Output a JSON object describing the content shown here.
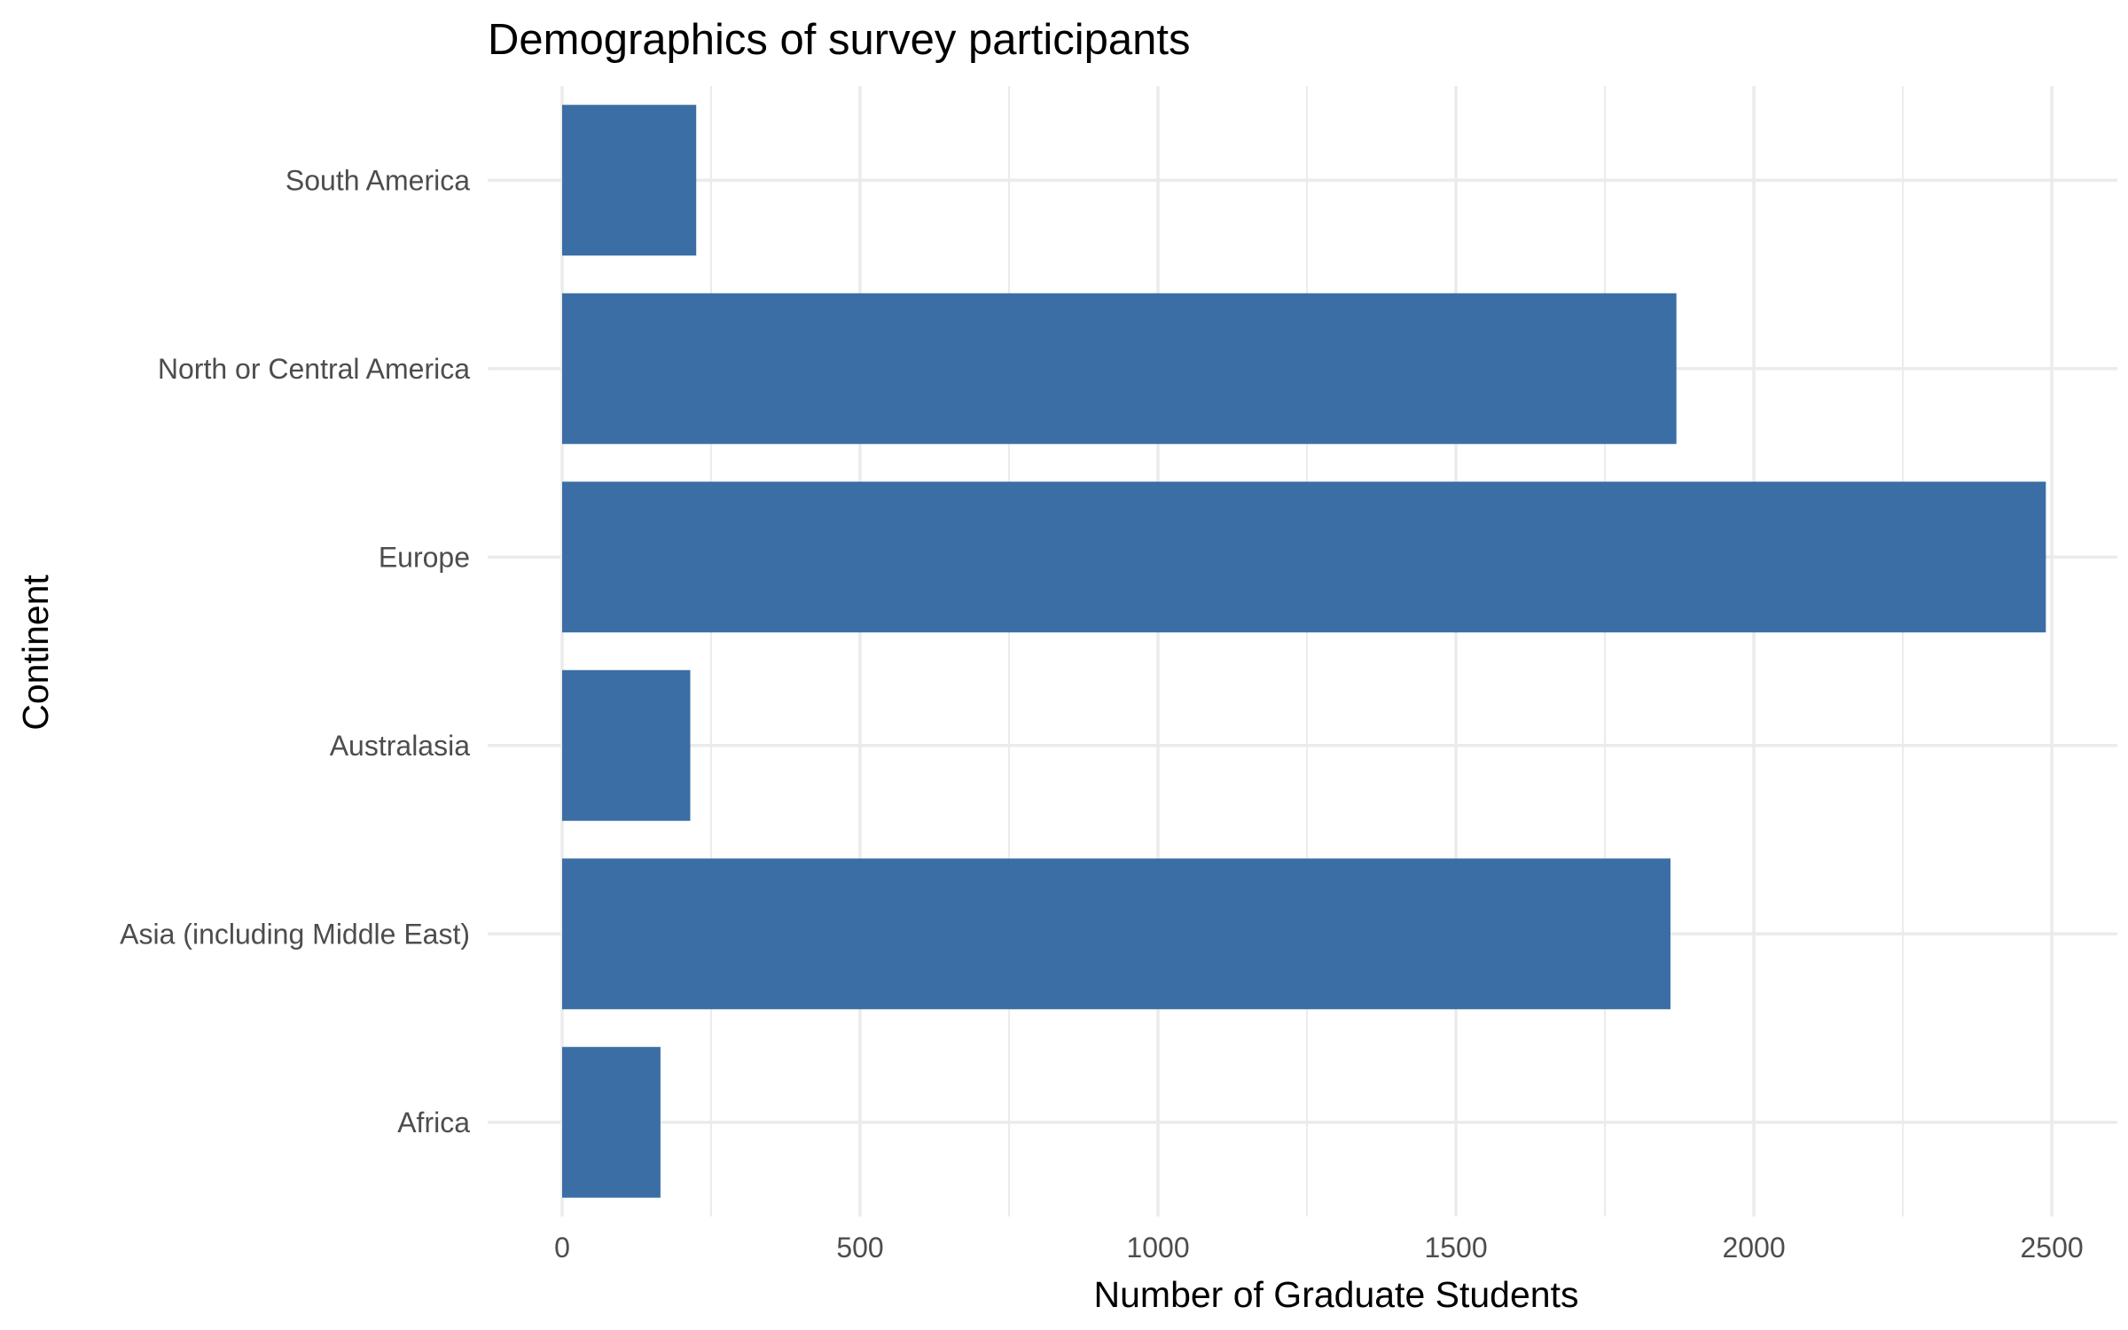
{
  "chart_data": {
    "type": "bar",
    "orientation": "horizontal",
    "title": "Demographics of survey participants",
    "xlabel": "Number of Graduate Students",
    "ylabel": "Continent",
    "categories": [
      "Africa",
      "Asia (including Middle East)",
      "Australasia",
      "Europe",
      "North or Central America",
      "South America"
    ],
    "values": [
      165,
      1860,
      215,
      2490,
      1870,
      225
    ],
    "xlim": [
      -125,
      2610
    ],
    "xticks": [
      0,
      500,
      1000,
      1500,
      2000,
      2500
    ],
    "xtick_labels": [
      "0",
      "500",
      "1000",
      "1500",
      "2000",
      "2500"
    ],
    "grid": true,
    "legend": "none",
    "bar_color": "#3a6ea5",
    "grid_color": "#ebebeb"
  }
}
